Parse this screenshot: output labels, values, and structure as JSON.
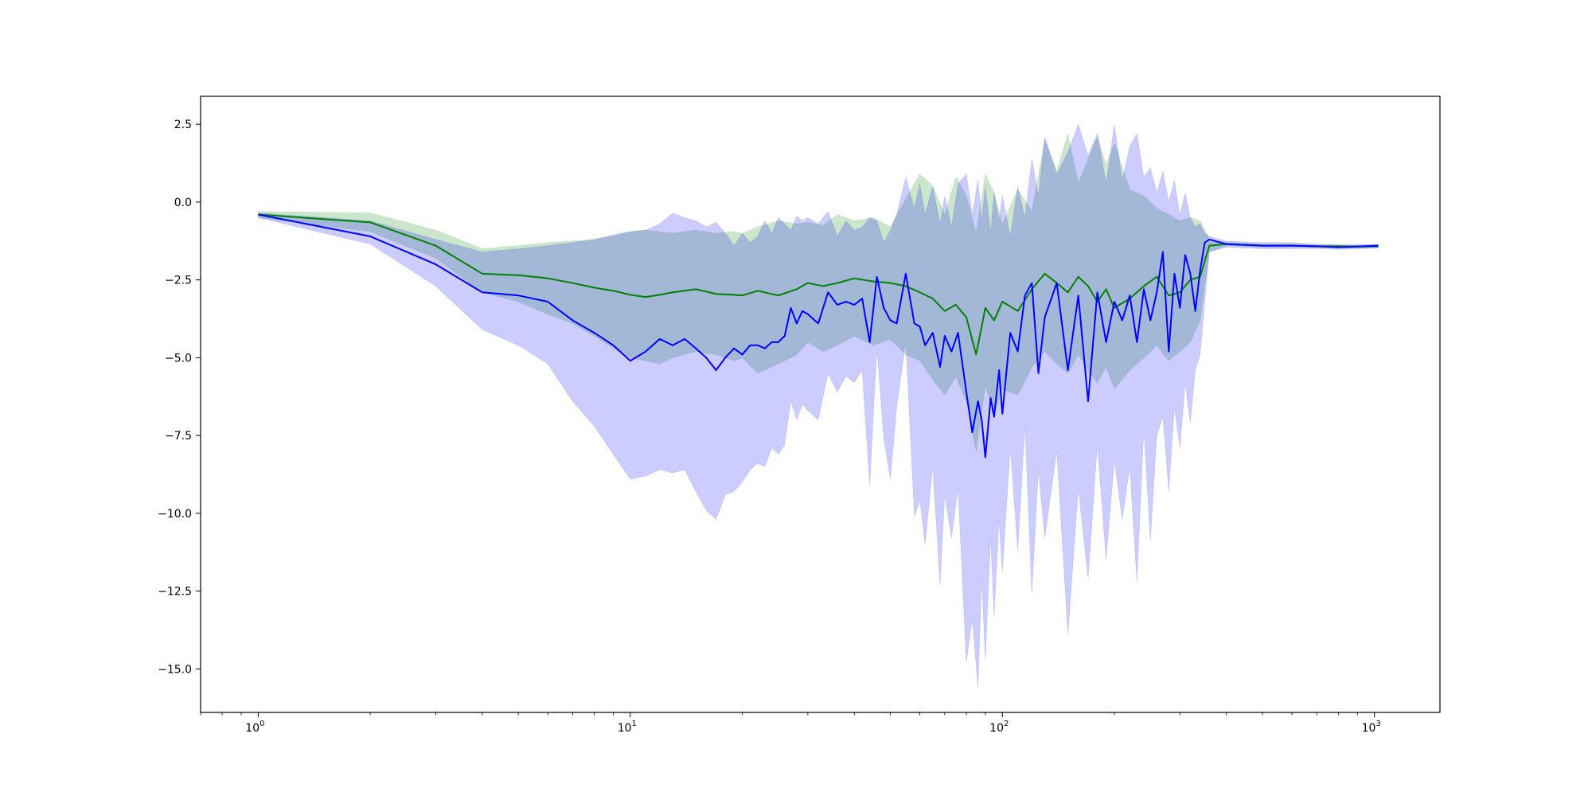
{
  "chart_data": {
    "type": "line",
    "title": "",
    "xlabel": "",
    "ylabel": "",
    "x_scale": "log",
    "xlim": [
      0.7,
      1500
    ],
    "ylim": [
      -16.4,
      3.4
    ],
    "grid": false,
    "x_ticks": [
      {
        "value": 1,
        "base": "10",
        "exp": "0"
      },
      {
        "value": 10,
        "base": "10",
        "exp": "1"
      },
      {
        "value": 100,
        "base": "10",
        "exp": "2"
      },
      {
        "value": 1000,
        "base": "10",
        "exp": "3"
      }
    ],
    "y_ticks": [
      {
        "value": 2.5,
        "label": "2.5"
      },
      {
        "value": 0.0,
        "label": "0.0"
      },
      {
        "value": -2.5,
        "label": "−2.5"
      },
      {
        "value": -5.0,
        "label": "−5.0"
      },
      {
        "value": -7.5,
        "label": "−7.5"
      },
      {
        "value": -10.0,
        "label": "−10.0"
      },
      {
        "value": -12.5,
        "label": "−12.5"
      },
      {
        "value": -15.0,
        "label": "−15.0"
      }
    ],
    "series": [
      {
        "color": "#008000",
        "band_color": "#008000",
        "band_opacity": 0.2,
        "x": [
          1,
          2,
          3,
          4,
          5,
          6,
          7,
          8,
          9,
          10,
          11,
          12,
          13,
          15,
          17,
          19,
          20,
          22,
          25,
          28,
          30,
          33,
          36,
          40,
          45,
          50,
          55,
          60,
          65,
          70,
          75,
          80,
          85,
          90,
          95,
          100,
          110,
          120,
          130,
          140,
          150,
          160,
          170,
          180,
          190,
          200,
          220,
          240,
          260,
          280,
          300,
          320,
          340,
          360,
          400,
          500,
          600,
          700,
          800,
          900,
          1024
        ],
        "y": [
          -0.4,
          -0.65,
          -1.4,
          -2.3,
          -2.35,
          -2.45,
          -2.6,
          -2.75,
          -2.85,
          -2.98,
          -3.05,
          -2.98,
          -2.9,
          -2.8,
          -2.95,
          -2.98,
          -3.0,
          -2.85,
          -3.0,
          -2.8,
          -2.6,
          -2.7,
          -2.6,
          -2.45,
          -2.55,
          -2.6,
          -2.7,
          -2.9,
          -3.1,
          -3.5,
          -3.3,
          -3.7,
          -4.9,
          -3.4,
          -3.8,
          -3.2,
          -3.5,
          -2.8,
          -2.3,
          -2.6,
          -2.9,
          -2.4,
          -2.7,
          -3.2,
          -2.8,
          -3.4,
          -3.1,
          -2.7,
          -2.4,
          -3.0,
          -2.9,
          -2.5,
          -2.4,
          -1.4,
          -1.35,
          -1.4,
          -1.4,
          -1.42,
          -1.42,
          -1.43,
          -1.42
        ],
        "upper": [
          -0.3,
          -0.35,
          -0.9,
          -1.5,
          -1.4,
          -1.3,
          -1.25,
          -1.2,
          -1.1,
          -0.95,
          -0.9,
          -0.95,
          -1.0,
          -0.9,
          -1.0,
          -0.95,
          -1.0,
          -0.8,
          -0.6,
          -0.7,
          -0.65,
          -0.75,
          -0.4,
          -0.6,
          -0.5,
          -0.8,
          0.1,
          0.9,
          0.5,
          -0.4,
          0.8,
          0.2,
          -1.0,
          0.9,
          0.3,
          -0.7,
          0.4,
          -0.3,
          2.0,
          1.0,
          2.2,
          0.6,
          1.4,
          2.1,
          1.2,
          1.9,
          0.4,
          0.2,
          -0.2,
          -0.4,
          -0.6,
          -0.5,
          -0.6,
          -1.2,
          -1.3,
          -1.35,
          -1.35,
          -1.37,
          -1.37,
          -1.38,
          -1.37
        ],
        "lower": [
          -0.5,
          -0.95,
          -1.8,
          -2.9,
          -3.2,
          -3.6,
          -3.9,
          -4.3,
          -4.7,
          -5.0,
          -5.1,
          -5.2,
          -5.0,
          -4.8,
          -4.9,
          -5.1,
          -5.0,
          -5.5,
          -5.2,
          -4.9,
          -4.5,
          -4.8,
          -4.6,
          -4.3,
          -4.6,
          -4.4,
          -4.9,
          -5.1,
          -5.7,
          -6.2,
          -5.6,
          -6.4,
          -8.0,
          -5.9,
          -6.8,
          -6.0,
          -6.2,
          -5.3,
          -4.8,
          -5.2,
          -5.5,
          -4.9,
          -5.4,
          -5.8,
          -5.3,
          -6.0,
          -5.4,
          -5.0,
          -4.6,
          -5.1,
          -4.8,
          -4.5,
          -3.8,
          -1.6,
          -1.4,
          -1.45,
          -1.45,
          -1.47,
          -1.47,
          -1.48,
          -1.47
        ]
      },
      {
        "color": "#0000ff",
        "band_color": "#0000ff",
        "band_opacity": 0.2,
        "x": [
          1,
          2,
          3,
          4,
          5,
          6,
          7,
          8,
          9,
          10,
          11,
          12,
          13,
          14,
          15,
          16,
          17,
          18,
          19,
          20,
          21,
          22,
          23,
          24,
          25,
          26,
          27,
          28,
          29,
          30,
          32,
          34,
          36,
          38,
          40,
          42,
          44,
          46,
          48,
          50,
          52,
          55,
          58,
          60,
          62,
          65,
          68,
          70,
          73,
          76,
          80,
          83,
          86,
          88,
          90,
          93,
          95,
          98,
          100,
          105,
          110,
          115,
          120,
          125,
          130,
          140,
          150,
          160,
          170,
          180,
          190,
          200,
          210,
          220,
          230,
          240,
          250,
          260,
          270,
          280,
          290,
          300,
          310,
          320,
          330,
          340,
          350,
          360,
          400,
          500,
          600,
          700,
          800,
          900,
          1024
        ],
        "y": [
          -0.4,
          -1.1,
          -2.0,
          -2.9,
          -3.0,
          -3.2,
          -3.8,
          -4.2,
          -4.6,
          -5.1,
          -4.8,
          -4.4,
          -4.6,
          -4.4,
          -4.7,
          -5.0,
          -5.4,
          -5.0,
          -4.7,
          -4.9,
          -4.6,
          -4.6,
          -4.7,
          -4.5,
          -4.5,
          -4.3,
          -3.4,
          -3.9,
          -3.5,
          -3.6,
          -3.9,
          -2.9,
          -3.3,
          -3.2,
          -3.3,
          -3.1,
          -4.5,
          -2.4,
          -3.4,
          -3.8,
          -3.9,
          -2.3,
          -3.9,
          -4.0,
          -4.6,
          -4.2,
          -5.3,
          -4.3,
          -4.8,
          -4.2,
          -6.1,
          -7.4,
          -6.4,
          -7.0,
          -8.2,
          -6.3,
          -6.9,
          -5.4,
          -6.8,
          -4.2,
          -4.8,
          -3.0,
          -2.6,
          -5.5,
          -3.7,
          -2.6,
          -5.4,
          -3.0,
          -6.4,
          -2.9,
          -4.5,
          -3.2,
          -3.8,
          -3.0,
          -4.5,
          -2.8,
          -3.8,
          -2.9,
          -1.6,
          -4.8,
          -2.3,
          -3.4,
          -1.7,
          -2.3,
          -3.5,
          -2.2,
          -1.3,
          -1.2,
          -1.35,
          -1.4,
          -1.4,
          -1.42,
          -1.45,
          -1.43,
          -1.4
        ],
        "upper": [
          -0.35,
          -0.6,
          -1.2,
          -1.6,
          -1.5,
          -1.4,
          -1.3,
          -1.2,
          -1.05,
          -0.95,
          -0.9,
          -0.7,
          -0.35,
          -0.5,
          -0.6,
          -0.8,
          -0.65,
          -1.0,
          -1.4,
          -1.0,
          -1.3,
          -1.1,
          -0.6,
          -1.0,
          -0.5,
          -0.7,
          -0.9,
          -0.45,
          -0.6,
          -0.5,
          -0.7,
          -0.3,
          -1.1,
          -0.6,
          -0.9,
          -0.8,
          -0.5,
          -0.6,
          -1.3,
          -0.9,
          -0.4,
          0.8,
          -0.2,
          0.6,
          -0.4,
          0.5,
          -0.7,
          0.2,
          -0.8,
          0.6,
          0.9,
          -0.4,
          0.7,
          -0.6,
          0.5,
          -1.0,
          0.3,
          -0.6,
          0.2,
          -1.1,
          0.5,
          -0.5,
          1.4,
          0.2,
          2.1,
          0.9,
          1.6,
          2.5,
          1.5,
          2.2,
          0.6,
          2.5,
          0.7,
          1.8,
          2.2,
          0.8,
          1.1,
          0.3,
          1.0,
          0.0,
          0.7,
          -0.4,
          0.3,
          -0.5,
          -0.8,
          -0.7,
          -1.0,
          -1.1,
          -1.25,
          -1.3,
          -1.3,
          -1.35,
          -1.38,
          -1.37,
          -1.35
        ],
        "lower": [
          -0.5,
          -1.35,
          -2.7,
          -4.1,
          -4.6,
          -5.2,
          -6.4,
          -7.2,
          -8.1,
          -8.9,
          -8.8,
          -8.6,
          -8.7,
          -8.6,
          -9.3,
          -9.9,
          -10.2,
          -9.4,
          -9.3,
          -9.0,
          -8.6,
          -8.4,
          -8.5,
          -7.9,
          -8.1,
          -7.8,
          -6.4,
          -7.0,
          -6.5,
          -6.7,
          -7.0,
          -5.5,
          -6.1,
          -5.6,
          -5.8,
          -5.4,
          -9.1,
          -4.7,
          -7.6,
          -8.9,
          -6.6,
          -4.5,
          -10.1,
          -9.6,
          -11.0,
          -8.5,
          -12.3,
          -9.4,
          -10.8,
          -9.2,
          -14.8,
          -13.4,
          -15.6,
          -12.1,
          -14.7,
          -10.8,
          -13.3,
          -10.2,
          -11.9,
          -7.9,
          -11.2,
          -7.2,
          -12.6,
          -8.6,
          -10.8,
          -8.0,
          -13.9,
          -9.2,
          -12.1,
          -7.8,
          -11.5,
          -8.3,
          -10.2,
          -8.5,
          -12.2,
          -7.3,
          -10.9,
          -7.5,
          -6.9,
          -9.3,
          -6.6,
          -7.9,
          -5.8,
          -7.1,
          -5.4,
          -4.9,
          -3.2,
          -1.6,
          -1.45,
          -1.5,
          -1.5,
          -1.49,
          -1.52,
          -1.5,
          -1.48
        ]
      }
    ]
  }
}
